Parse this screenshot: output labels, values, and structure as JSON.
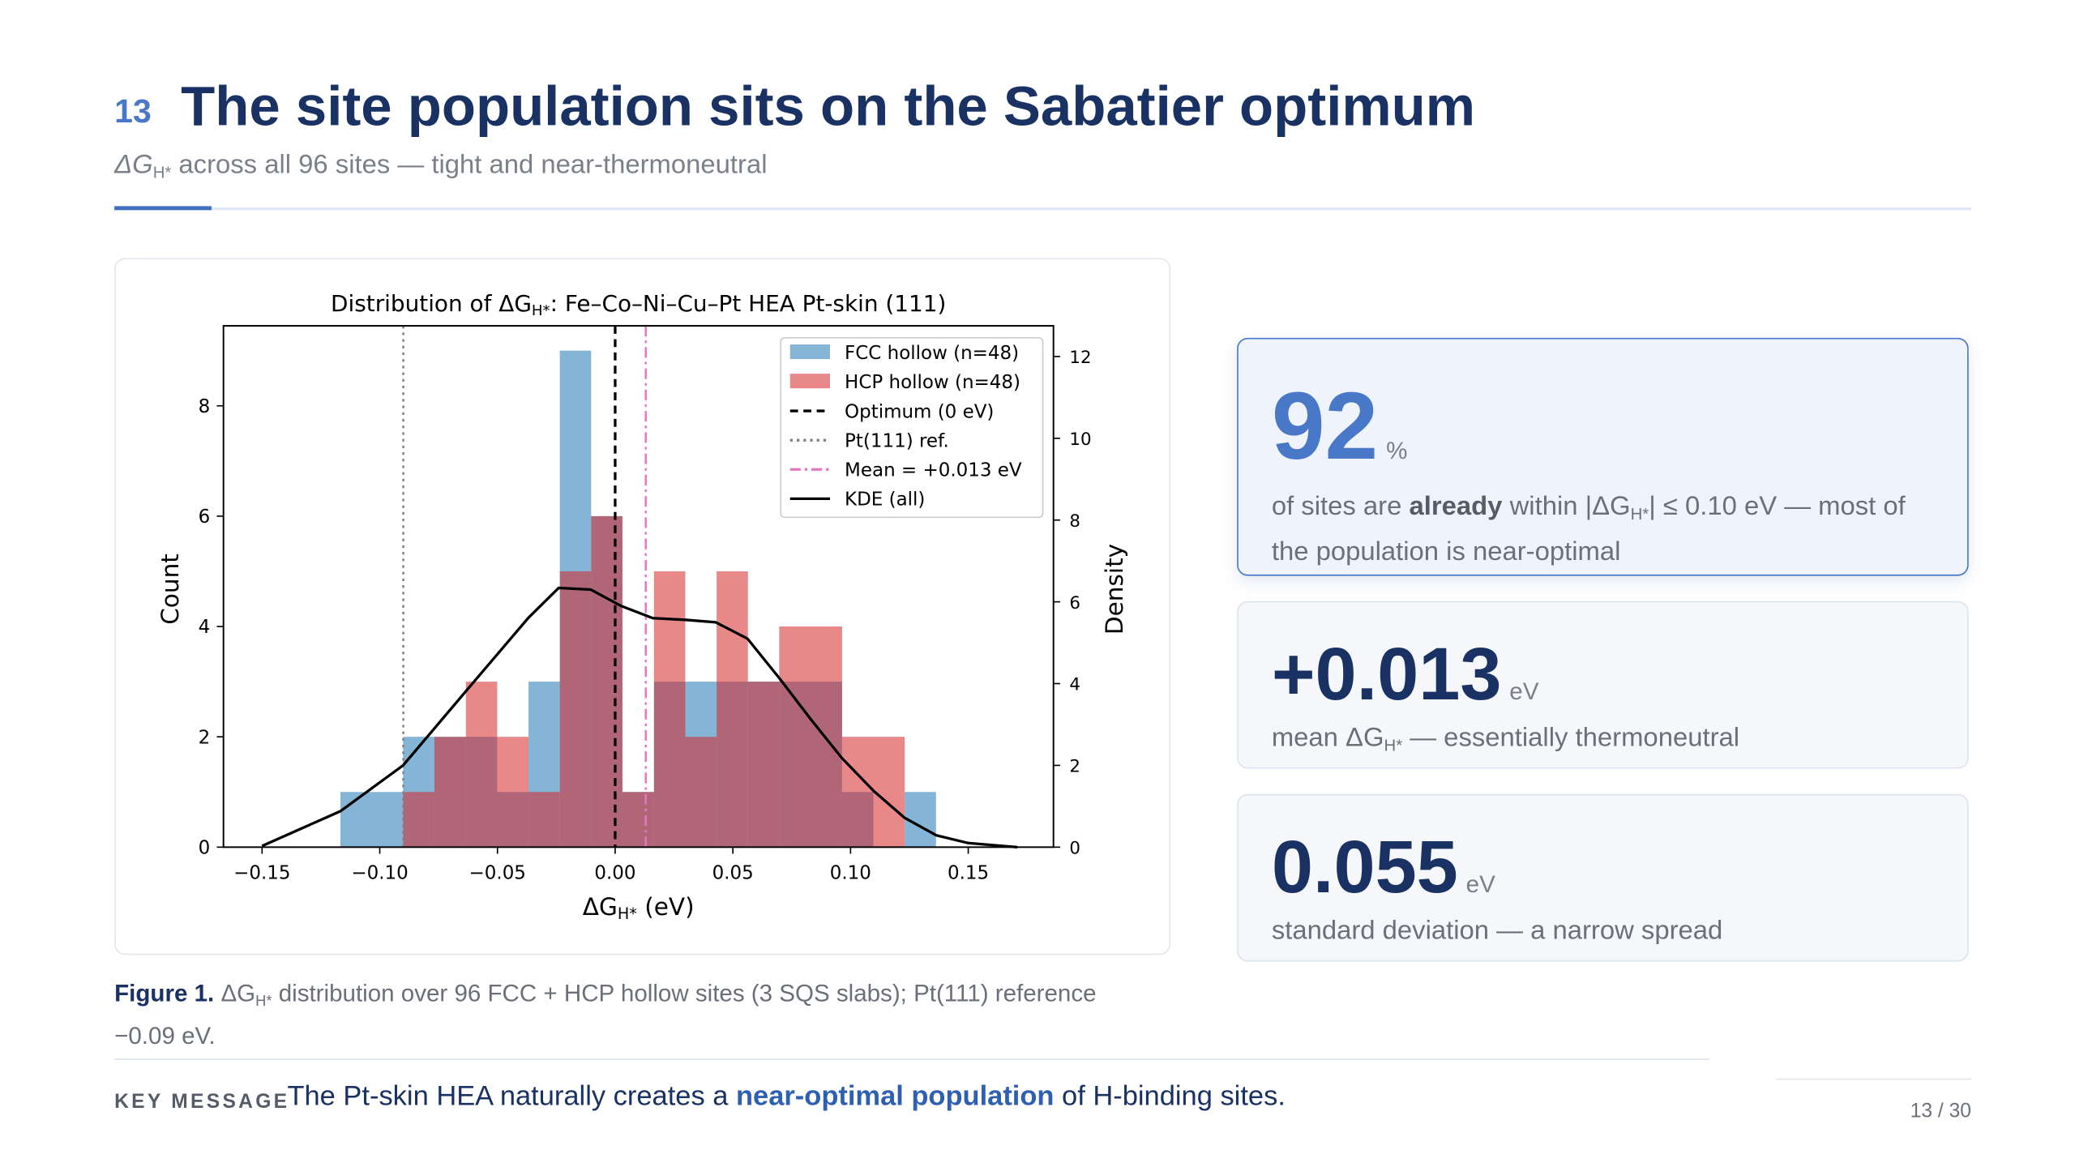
{
  "header": {
    "number": "13",
    "title": "The site population sits on the Sabatier optimum",
    "subtitle": [
      "ΔG",
      "H*",
      " across all 96 sites — tight and near-thermoneutral"
    ]
  },
  "chart_data": {
    "type": "histogram",
    "title": [
      "Distribution of ΔG",
      "H*",
      ": Fe–Co–Ni–Cu–Pt HEA Pt-skin (111)"
    ],
    "xlabel": [
      "ΔG",
      "H*",
      " (eV)"
    ],
    "ylabel": "Count",
    "y2label": "Density",
    "bins": [
      -0.1167,
      -0.1034,
      -0.0901,
      -0.0768,
      -0.0634,
      -0.0501,
      -0.0368,
      -0.0235,
      -0.0102,
      0.0031,
      0.0165,
      0.0298,
      0.0431,
      0.0564,
      0.0697,
      0.083,
      0.0964,
      0.1097,
      0.123,
      0.1363
    ],
    "series": [
      {
        "name": "FCC hollow (n=48)",
        "color": "#1f77b4",
        "alpha": 0.55,
        "values": [
          1,
          1,
          2,
          2,
          2,
          1,
          3,
          9,
          6,
          1,
          3,
          3,
          3,
          3,
          3,
          3,
          1,
          0,
          1
        ]
      },
      {
        "name": "HCP hollow (n=48)",
        "color": "#d62728",
        "alpha": 0.55,
        "values": [
          0,
          0,
          1,
          2,
          3,
          2,
          1,
          5,
          6,
          1,
          5,
          2,
          5,
          3,
          4,
          4,
          2,
          2,
          0
        ]
      }
    ],
    "vlines": [
      {
        "name": "Optimum (0 eV)",
        "x": 0,
        "color": "#000000",
        "style": "dashed"
      },
      {
        "name": "Pt(111) ref.",
        "x": -0.09,
        "color": "#808080",
        "style": "dotted"
      },
      {
        "name": "Mean = +0.013 eV",
        "x": 0.013,
        "color": "#e377c2",
        "style": "dashdot"
      }
    ],
    "kde": {
      "name": "KDE (all)",
      "axis": "y2",
      "color": "#000000",
      "x": [
        -0.15,
        -0.1167,
        -0.0901,
        -0.0636,
        -0.037,
        -0.024,
        -0.0104,
        0.0025,
        0.016,
        0.0297,
        0.0427,
        0.0562,
        0.0698,
        0.0828,
        0.0963,
        0.1099,
        0.1229,
        0.1364,
        0.15,
        0.1709
      ],
      "values": [
        0.03,
        0.88,
        2.0,
        3.8,
        5.6,
        6.34,
        6.3,
        5.9,
        5.6,
        5.56,
        5.5,
        5.1,
        4.13,
        3.15,
        2.18,
        1.37,
        0.72,
        0.29,
        0.1,
        0.0
      ]
    },
    "xlim": [
      -0.1664,
      0.1862
    ],
    "ylim": [
      0,
      9.45
    ],
    "y2lim": [
      0,
      12.75
    ],
    "xticks": [
      {
        "value": -0.15,
        "label": "−0.15"
      },
      {
        "value": -0.1,
        "label": "−0.10"
      },
      {
        "value": -0.05,
        "label": "−0.05"
      },
      {
        "value": 0,
        "label": "0.00"
      },
      0.05,
      {
        "value": 0.1,
        "label": "0.10"
      },
      0.15
    ],
    "yticks": [
      0,
      2,
      4,
      6,
      8
    ],
    "y2ticks": [
      0,
      2,
      4,
      6,
      8,
      10,
      12
    ],
    "legend": "upper right"
  },
  "caption": [
    "Figure 1.",
    " ΔG",
    "H*",
    " distribution over 96 FCC + HCP hollow sites (3 SQS slabs); Pt(111) reference −0.09 eV."
  ],
  "stats": [
    {
      "value": "92",
      "unit": "%",
      "text": [
        "of sites are ",
        "already",
        " within |ΔG",
        "H*",
        "| ≤ 0.10 eV — most of the population is near-optimal"
      ]
    },
    {
      "value": "+0.013",
      "unit": "eV",
      "text": [
        "mean ΔG",
        "H*",
        " — essentially thermoneutral"
      ]
    },
    {
      "value": "0.055",
      "unit": "eV",
      "text": [
        "standard deviation — a narrow spread"
      ]
    }
  ],
  "key_message": {
    "label": "KEY MESSAGE",
    "text": [
      "The Pt-skin HEA naturally creates a ",
      "near-optimal population",
      " of H-binding sites."
    ]
  },
  "page": "13 / 30"
}
